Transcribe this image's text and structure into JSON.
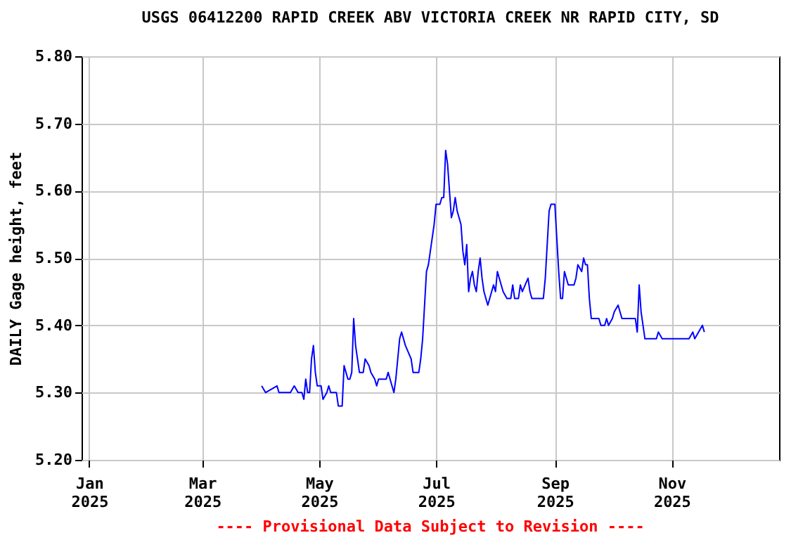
{
  "chart_data": {
    "type": "line",
    "title": "USGS 06412200 RAPID CREEK ABV VICTORIA CREEK NR RAPID CITY, SD",
    "ylabel": "DAILY Gage height, feet",
    "annotations": [
      "---- Provisional Data Subject to Revision ----"
    ],
    "xlim": [
      "2024-12-28",
      "2025-12-27"
    ],
    "xticks": [
      {
        "value": "2025-01-01",
        "label": "Jan 2025"
      },
      {
        "value": "2025-03-01",
        "label": "Mar 2025"
      },
      {
        "value": "2025-05-01",
        "label": "May 2025"
      },
      {
        "value": "2025-07-01",
        "label": "Jul 2025"
      },
      {
        "value": "2025-09-01",
        "label": "Sep 2025"
      },
      {
        "value": "2025-11-01",
        "label": "Nov 2025"
      }
    ],
    "ylim": [
      5.2,
      5.8
    ],
    "yticks": [
      {
        "value": 5.2,
        "label": "5.20"
      },
      {
        "value": 5.3,
        "label": "5.30"
      },
      {
        "value": 5.4,
        "label": "5.40"
      },
      {
        "value": 5.5,
        "label": "5.50"
      },
      {
        "value": 5.6,
        "label": "5.60"
      },
      {
        "value": 5.7,
        "label": "5.70"
      },
      {
        "value": 5.8,
        "label": "5.80"
      }
    ],
    "grid": true,
    "x": [
      "2025-04-01",
      "2025-04-03",
      "2025-04-09",
      "2025-04-10",
      "2025-04-16",
      "2025-04-18",
      "2025-04-20",
      "2025-04-22",
      "2025-04-23",
      "2025-04-24",
      "2025-04-25",
      "2025-04-26",
      "2025-04-27",
      "2025-04-28",
      "2025-04-29",
      "2025-04-30",
      "2025-05-02",
      "2025-05-03",
      "2025-05-05",
      "2025-05-06",
      "2025-05-07",
      "2025-05-09",
      "2025-05-10",
      "2025-05-11",
      "2025-05-13",
      "2025-05-14",
      "2025-05-15",
      "2025-05-16",
      "2025-05-17",
      "2025-05-18",
      "2025-05-19",
      "2025-05-20",
      "2025-05-21",
      "2025-05-22",
      "2025-05-24",
      "2025-05-25",
      "2025-05-27",
      "2025-05-28",
      "2025-05-30",
      "2025-05-31",
      "2025-06-01",
      "2025-06-05",
      "2025-06-06",
      "2025-06-07",
      "2025-06-08",
      "2025-06-09",
      "2025-06-10",
      "2025-06-12",
      "2025-06-13",
      "2025-06-14",
      "2025-06-15",
      "2025-06-18",
      "2025-06-19",
      "2025-06-22",
      "2025-06-23",
      "2025-06-24",
      "2025-06-25",
      "2025-06-26",
      "2025-06-27",
      "2025-06-28",
      "2025-06-30",
      "2025-07-01",
      "2025-07-03",
      "2025-07-04",
      "2025-07-05",
      "2025-07-06",
      "2025-07-07",
      "2025-07-08",
      "2025-07-09",
      "2025-07-10",
      "2025-07-11",
      "2025-07-12",
      "2025-07-13",
      "2025-07-14",
      "2025-07-15",
      "2025-07-16",
      "2025-07-17",
      "2025-07-18",
      "2025-07-19",
      "2025-07-20",
      "2025-07-21",
      "2025-07-22",
      "2025-07-23",
      "2025-07-24",
      "2025-07-25",
      "2025-07-26",
      "2025-07-27",
      "2025-07-28",
      "2025-07-29",
      "2025-07-30",
      "2025-07-31",
      "2025-08-01",
      "2025-08-02",
      "2025-08-03",
      "2025-08-05",
      "2025-08-07",
      "2025-08-09",
      "2025-08-10",
      "2025-08-11",
      "2025-08-13",
      "2025-08-14",
      "2025-08-15",
      "2025-08-18",
      "2025-08-19",
      "2025-08-20",
      "2025-08-26",
      "2025-08-27",
      "2025-08-28",
      "2025-08-29",
      "2025-08-30",
      "2025-09-01",
      "2025-09-02",
      "2025-09-03",
      "2025-09-04",
      "2025-09-05",
      "2025-09-06",
      "2025-09-07",
      "2025-09-08",
      "2025-09-09",
      "2025-09-11",
      "2025-09-12",
      "2025-09-13",
      "2025-09-15",
      "2025-09-16",
      "2025-09-17",
      "2025-09-18",
      "2025-09-19",
      "2025-09-20",
      "2025-09-24",
      "2025-09-25",
      "2025-09-27",
      "2025-09-28",
      "2025-09-29",
      "2025-10-01",
      "2025-10-02",
      "2025-10-04",
      "2025-10-05",
      "2025-10-06",
      "2025-10-13",
      "2025-10-14",
      "2025-10-15",
      "2025-10-16",
      "2025-10-17",
      "2025-10-18",
      "2025-10-24",
      "2025-10-25",
      "2025-10-27",
      "2025-11-10",
      "2025-11-12",
      "2025-11-13",
      "2025-11-15",
      "2025-11-17",
      "2025-11-18"
    ],
    "series": [
      {
        "color": "#0000ff",
        "values": [
          5.31,
          5.3,
          5.31,
          5.3,
          5.3,
          5.31,
          5.3,
          5.3,
          5.29,
          5.32,
          5.3,
          5.3,
          5.35,
          5.37,
          5.33,
          5.31,
          5.31,
          5.29,
          5.3,
          5.31,
          5.3,
          5.3,
          5.3,
          5.28,
          5.28,
          5.34,
          5.33,
          5.32,
          5.32,
          5.33,
          5.41,
          5.37,
          5.35,
          5.33,
          5.33,
          5.35,
          5.34,
          5.33,
          5.32,
          5.31,
          5.32,
          5.32,
          5.33,
          5.32,
          5.31,
          5.3,
          5.32,
          5.38,
          5.39,
          5.38,
          5.37,
          5.35,
          5.33,
          5.33,
          5.35,
          5.38,
          5.43,
          5.48,
          5.49,
          5.51,
          5.55,
          5.58,
          5.58,
          5.59,
          5.59,
          5.66,
          5.64,
          5.6,
          5.56,
          5.57,
          5.59,
          5.57,
          5.56,
          5.55,
          5.51,
          5.49,
          5.52,
          5.45,
          5.47,
          5.48,
          5.46,
          5.45,
          5.48,
          5.5,
          5.47,
          5.45,
          5.44,
          5.43,
          5.44,
          5.45,
          5.46,
          5.45,
          5.48,
          5.47,
          5.45,
          5.44,
          5.44,
          5.46,
          5.44,
          5.44,
          5.46,
          5.45,
          5.47,
          5.45,
          5.44,
          5.44,
          5.47,
          5.52,
          5.57,
          5.58,
          5.58,
          5.53,
          5.48,
          5.44,
          5.44,
          5.48,
          5.47,
          5.46,
          5.46,
          5.46,
          5.47,
          5.49,
          5.48,
          5.5,
          5.49,
          5.49,
          5.44,
          5.41,
          5.41,
          5.4,
          5.4,
          5.41,
          5.4,
          5.41,
          5.42,
          5.43,
          5.42,
          5.41,
          5.41,
          5.39,
          5.46,
          5.42,
          5.4,
          5.38,
          5.38,
          5.39,
          5.38,
          5.38,
          5.39,
          5.38,
          5.39,
          5.4,
          5.39
        ]
      }
    ]
  }
}
